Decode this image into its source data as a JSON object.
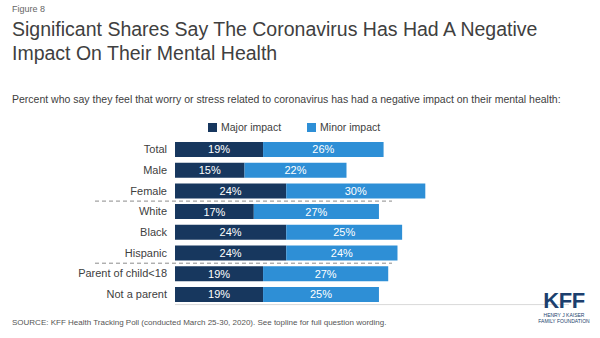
{
  "chart_data": {
    "type": "bar",
    "orientation": "horizontal",
    "stacked": true,
    "data_labels": true,
    "tick_labels": "y",
    "legend": "top",
    "title": "Significant Shares Say The Coronavirus Has Had A Negative Impact On Their Mental Health",
    "subtitle": "Percent who say they feel that worry or stress related to coronavirus has had a negative impact on their mental health:",
    "annotations": [
      "Figure 8",
      "SOURCE: KFF Health Tracking Poll (conducted March 25-30, 2020). See topline for full question wording.",
      "KFF",
      "HENRY J KAISER FAMILY FOUNDATION"
    ],
    "categories": [
      "Total",
      "Male",
      "Female",
      "White",
      "Black",
      "Hispanic",
      "Parent of child<18",
      "Not a parent"
    ],
    "xlim": [
      0,
      85
    ],
    "series": [
      {
        "name": "Major impact",
        "color": "#17375e",
        "values": [
          19,
          15,
          24,
          17,
          24,
          24,
          19,
          19
        ],
        "value_labels": [
          "19%",
          "15%",
          "24%",
          "17%",
          "24%",
          "24%",
          "19%",
          "19%"
        ]
      },
      {
        "name": "Minor impact",
        "color": "#2e8fd6",
        "values": [
          26,
          22,
          30,
          27,
          25,
          24,
          27,
          25
        ],
        "value_labels": [
          "26%",
          "22%",
          "30%",
          "27%",
          "25%",
          "24%",
          "27%",
          "25%"
        ]
      }
    ]
  }
}
